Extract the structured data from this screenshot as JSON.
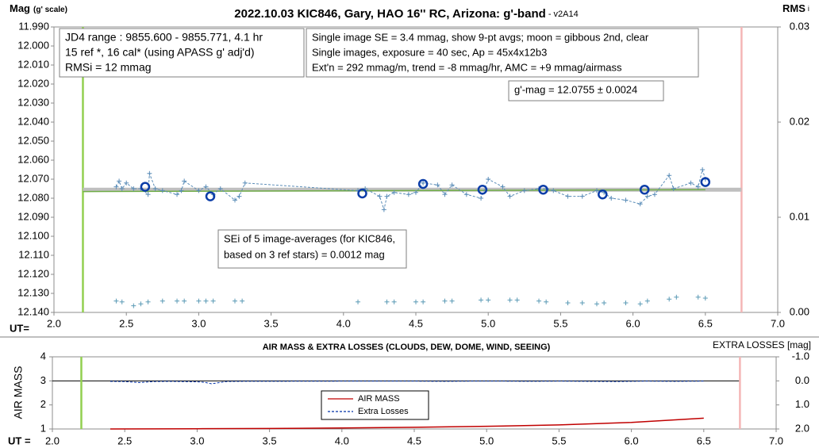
{
  "chart_data": [
    {
      "type": "scatter",
      "title": "2022.10.03 KIC846, Gary, HAO 16'' RC, Arizona: g'-band",
      "subtitle": " - v2A14",
      "y_label": "Mag",
      "y_label_note": "(g' scale)",
      "y2_label": "RMS",
      "y2_label_note": "i",
      "x_label": "UT=",
      "xlim": [
        2.0,
        7.0
      ],
      "xticks": [
        {
          "value": 2.0,
          "label": "2.0"
        },
        2.5,
        {
          "value": 3.0,
          "label": "3.0"
        },
        3.5,
        {
          "value": 4.0,
          "label": "4.0"
        },
        4.5,
        {
          "value": 5.0,
          "label": "5.0"
        },
        5.5,
        {
          "value": 6.0,
          "label": "6.0"
        },
        6.5,
        {
          "value": 7.0,
          "label": "7.0"
        }
      ],
      "ylim": [
        12.14,
        11.99
      ],
      "yticks": [
        {
          "value": 11.99,
          "label": "11.990"
        },
        {
          "value": 12.0,
          "label": "12.000"
        },
        {
          "value": 12.01,
          "label": "12.010"
        },
        {
          "value": 12.02,
          "label": "12.020"
        },
        {
          "value": 12.03,
          "label": "12.030"
        },
        {
          "value": 12.04,
          "label": "12.040"
        },
        {
          "value": 12.05,
          "label": "12.050"
        },
        {
          "value": 12.06,
          "label": "12.060"
        },
        {
          "value": 12.07,
          "label": "12.070"
        },
        {
          "value": 12.08,
          "label": "12.080"
        },
        {
          "value": 12.09,
          "label": "12.090"
        },
        {
          "value": 12.1,
          "label": "12.100"
        },
        {
          "value": 12.11,
          "label": "12.110"
        },
        {
          "value": 12.12,
          "label": "12.120"
        },
        {
          "value": 12.13,
          "label": "12.130"
        },
        {
          "value": 12.14,
          "label": "12.140"
        }
      ],
      "y2lim": [
        0,
        0.03
      ],
      "y2ticks": [
        {
          "value": 0,
          "label": "0.00"
        },
        0.01,
        0.02,
        0.03
      ],
      "markers": [
        {
          "x": 2.2,
          "color": "#92d050"
        },
        {
          "x": 6.75,
          "color": "#f4b6b6"
        }
      ],
      "series": [
        {
          "color": "#bfbfbf",
          "line": "thick",
          "x": [
            2.2,
            6.75
          ],
          "values": [
            12.0755,
            12.0755
          ]
        },
        {
          "color": "#70ad47",
          "line": "solid",
          "x": [
            2.2,
            6.5
          ],
          "values": [
            12.0765,
            12.0755
          ]
        },
        {
          "color": "#5b8db8",
          "line": "dashed",
          "marker": "plus",
          "x": [
            2.43,
            2.45,
            2.47,
            2.5,
            2.55,
            2.6,
            2.65,
            2.66,
            2.7,
            2.75,
            2.85,
            2.88,
            2.9,
            3.0,
            3.05,
            3.1,
            3.15,
            3.25,
            3.28,
            3.32,
            4.1,
            4.15,
            4.25,
            4.28,
            4.3,
            4.35,
            4.45,
            4.5,
            4.55,
            4.65,
            4.7,
            4.75,
            4.85,
            4.95,
            5.0,
            5.1,
            5.15,
            5.25,
            5.35,
            5.4,
            5.45,
            5.55,
            5.65,
            5.75,
            5.8,
            5.85,
            5.95,
            6.05,
            6.1,
            6.15,
            6.25,
            6.28,
            6.4,
            6.45,
            6.48,
            6.5
          ],
          "values": [
            12.074,
            12.071,
            12.075,
            12.072,
            12.075,
            12.075,
            12.078,
            12.067,
            12.075,
            12.076,
            12.078,
            12.076,
            12.071,
            12.076,
            12.074,
            12.078,
            12.075,
            12.081,
            12.079,
            12.072,
            12.076,
            12.075,
            12.079,
            12.086,
            12.079,
            12.077,
            12.078,
            12.077,
            12.072,
            12.073,
            12.078,
            12.073,
            12.078,
            12.08,
            12.07,
            12.074,
            12.079,
            12.076,
            12.075,
            12.075,
            12.076,
            12.079,
            12.079,
            12.076,
            12.077,
            12.08,
            12.081,
            12.083,
            12.079,
            12.078,
            12.068,
            12.075,
            12.072,
            12.074,
            12.065,
            12.07
          ]
        },
        {
          "color": "#0b3da8",
          "marker": "circle",
          "x": [
            2.63,
            3.08,
            4.13,
            4.55,
            4.96,
            5.38,
            5.79,
            6.08,
            6.5
          ],
          "values": [
            12.074,
            12.079,
            12.0775,
            12.0725,
            12.0755,
            12.0755,
            12.078,
            12.0755,
            12.0715
          ]
        },
        {
          "color": "#5a9ab5",
          "marker": "plus",
          "axis": "y2",
          "x": [
            2.43,
            2.47,
            2.55,
            2.6,
            2.65,
            2.75,
            2.85,
            2.9,
            3.0,
            3.05,
            3.1,
            3.25,
            3.3,
            4.1,
            4.3,
            4.35,
            4.5,
            4.55,
            4.7,
            4.75,
            4.95,
            5.0,
            5.15,
            5.2,
            5.35,
            5.4,
            5.55,
            5.65,
            5.75,
            5.8,
            5.95,
            6.05,
            6.1,
            6.25,
            6.3,
            6.45,
            6.5
          ],
          "values": [
            0.0012,
            0.0011,
            0.0007,
            0.0009,
            0.0011,
            0.0012,
            0.0012,
            0.0012,
            0.0012,
            0.0012,
            0.0012,
            0.0012,
            0.0012,
            0.0011,
            0.0011,
            0.0011,
            0.0011,
            0.0011,
            0.0012,
            0.0012,
            0.0013,
            0.0013,
            0.0013,
            0.0013,
            0.0012,
            0.0011,
            0.001,
            0.001,
            0.0009,
            0.001,
            0.001,
            0.0009,
            0.0012,
            0.0014,
            0.0016,
            0.0016,
            0.0015
          ]
        }
      ],
      "annotations": [
        {
          "lines": [
            "JD4 range : 9855.600 - 9855.771,  4.1 hr",
            "15 ref *, 16 cal* (using APASS g' adj'd)",
            "RMSi = 12 mmag"
          ]
        },
        {
          "lines": [
            "Single image SE = 3.4 mmag, show  9-pt avgs; moon = gibbous 2nd, clear",
            "Single images, exposure = 40 sec, Ap = 45x4x12b3",
            "Ext'n = 292 mmag/m, trend = -8 mmag/hr, AMC = +9 mmag/airmass"
          ]
        },
        {
          "lines": [
            "g'-mag = 12.0755 ± 0.0024"
          ]
        },
        {
          "lines": [
            "SEi of 5 image-averages (for KIC846,",
            "based on 3 ref stars) = 0.0012 mag"
          ]
        }
      ]
    },
    {
      "type": "line",
      "title": "AIR MASS & EXTRA LOSSES (CLOUDS, DEW, DOME, WIND, SEEING)",
      "y_label": "AIR MASS",
      "y2_label": "EXTRA LOSSES [mag]",
      "x_label": "UT =",
      "xlim": [
        2.0,
        7.0
      ],
      "xticks": [
        {
          "value": 2.0,
          "label": "2.0"
        },
        2.5,
        {
          "value": 3.0,
          "label": "3.0"
        },
        3.5,
        {
          "value": 4.0,
          "label": "4.0"
        },
        4.5,
        {
          "value": 5.0,
          "label": "5.0"
        },
        5.5,
        {
          "value": 6.0,
          "label": "6.0"
        },
        6.5,
        {
          "value": 7.0,
          "label": "7.0"
        }
      ],
      "ylim": [
        1,
        4
      ],
      "yticks": [
        1,
        2,
        3,
        4
      ],
      "y2lim": [
        2.0,
        -1.0
      ],
      "y2ticks": [
        {
          "value": -1.0,
          "label": "-1.0"
        },
        {
          "value": 0.0,
          "label": "0.0"
        },
        {
          "value": 1.0,
          "label": "1.0"
        },
        {
          "value": 2.0,
          "label": "2.0"
        }
      ],
      "markers": [
        {
          "x": 2.2,
          "color": "#92d050"
        },
        {
          "x": 6.75,
          "color": "#f4b6b6"
        }
      ],
      "legend": "lower center",
      "series": [
        {
          "name": "AIR MASS",
          "color": "#c00000",
          "line": "solid",
          "x": [
            2.4,
            3.0,
            3.5,
            4.0,
            4.5,
            5.0,
            5.5,
            6.0,
            6.5
          ],
          "values": [
            1.0,
            1.01,
            1.02,
            1.04,
            1.07,
            1.11,
            1.17,
            1.27,
            1.45
          ]
        },
        {
          "name": "Extra Losses",
          "color": "#0030a8",
          "line": "dashed",
          "axis": "y2",
          "x": [
            2.4,
            2.5,
            2.6,
            2.7,
            2.8,
            2.9,
            3.0,
            3.05,
            3.1,
            3.2,
            3.3,
            4.1,
            4.3,
            4.5,
            4.7,
            4.9,
            5.1,
            5.3,
            5.5,
            5.7,
            5.9,
            6.1,
            6.3,
            6.5
          ],
          "values": [
            0.02,
            0.03,
            0.07,
            0.03,
            0.02,
            0.03,
            0.04,
            0.06,
            0.12,
            0.03,
            0.02,
            0.01,
            0.01,
            0.01,
            0.02,
            0.01,
            0.01,
            0.02,
            0.01,
            0.02,
            0.03,
            0.01,
            0.02,
            0.01
          ]
        }
      ]
    }
  ]
}
